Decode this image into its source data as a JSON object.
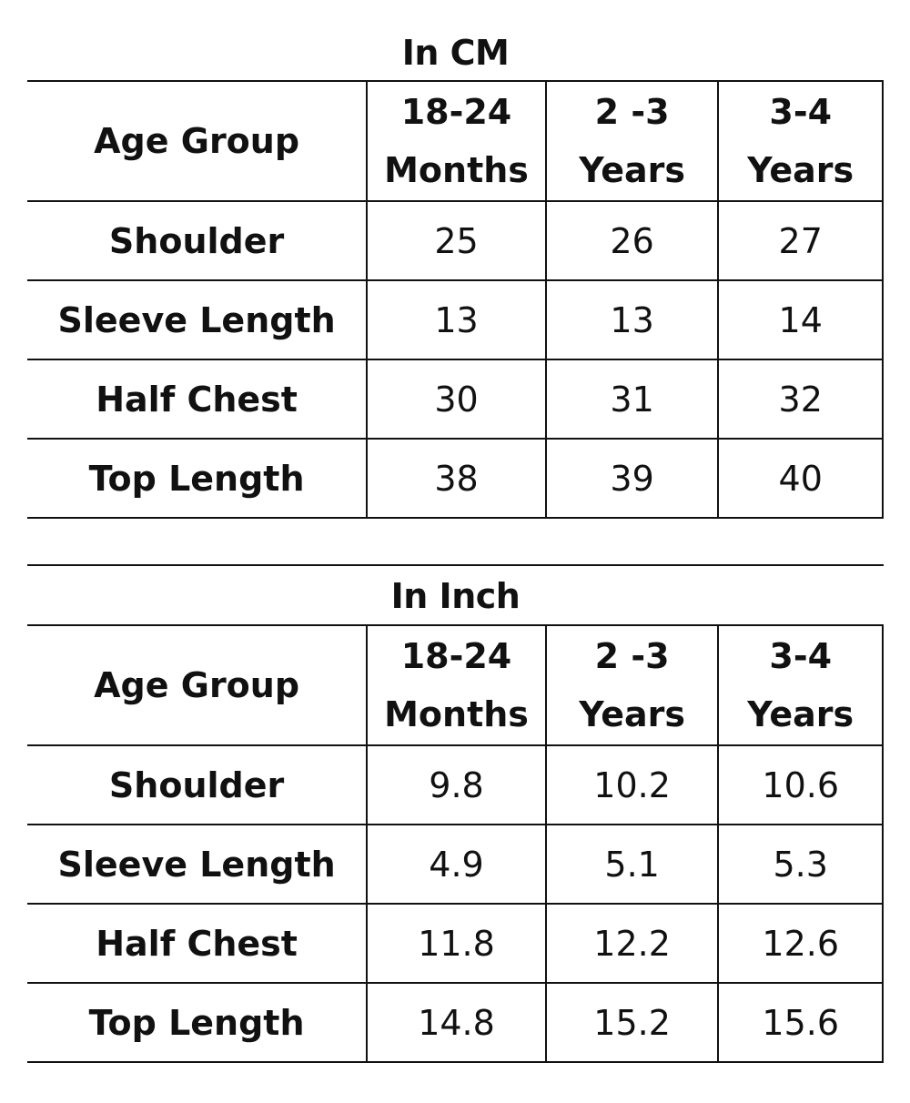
{
  "tables": [
    {
      "caption": "In CM",
      "header": {
        "label": "Age Group",
        "columns": [
          {
            "line1": "18-24",
            "line2": "Months"
          },
          {
            "line1": "2 -3",
            "line2": "Years"
          },
          {
            "line1": "3-4",
            "line2": "Years"
          }
        ]
      },
      "rows": [
        {
          "label": "Shoulder",
          "values": [
            "25",
            "26",
            "27"
          ]
        },
        {
          "label": "Sleeve Length",
          "values": [
            "13",
            "13",
            "14"
          ]
        },
        {
          "label": "Half Chest",
          "values": [
            "30",
            "31",
            "32"
          ]
        },
        {
          "label": "Top Length",
          "values": [
            "38",
            "39",
            "40"
          ]
        }
      ]
    },
    {
      "caption": "In Inch",
      "header": {
        "label": "Age Group",
        "columns": [
          {
            "line1": "18-24",
            "line2": "Months"
          },
          {
            "line1": "2 -3",
            "line2": "Years"
          },
          {
            "line1": "3-4",
            "line2": "Years"
          }
        ]
      },
      "rows": [
        {
          "label": "Shoulder",
          "values": [
            "9.8",
            "10.2",
            "10.6"
          ]
        },
        {
          "label": "Sleeve Length",
          "values": [
            "4.9",
            "5.1",
            "5.3"
          ]
        },
        {
          "label": "Half Chest",
          "values": [
            "11.8",
            "12.2",
            "12.6"
          ]
        },
        {
          "label": "Top Length",
          "values": [
            "14.8",
            "15.2",
            "15.6"
          ]
        }
      ]
    }
  ]
}
